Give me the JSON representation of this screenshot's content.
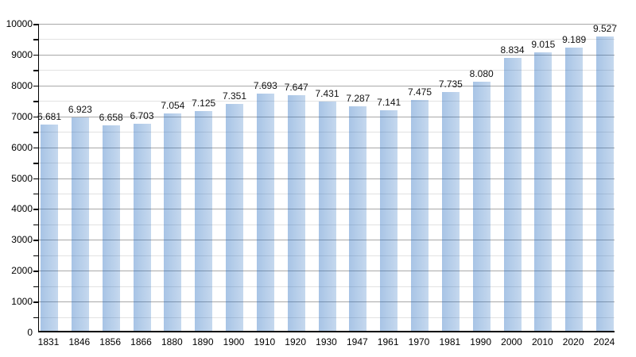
{
  "chart_data": {
    "type": "bar",
    "title": "",
    "categories": [
      "1831",
      "1846",
      "1856",
      "1866",
      "1880",
      "1890",
      "1900",
      "1910",
      "1920",
      "1930",
      "1947",
      "1961",
      "1970",
      "1981",
      "1990",
      "2000",
      "2010",
      "2020",
      "2024"
    ],
    "values": [
      6681,
      6923,
      6658,
      6703,
      7054,
      7125,
      7351,
      7693,
      7647,
      7431,
      7287,
      7141,
      7475,
      7735,
      8080,
      8834,
      9015,
      9189,
      9527
    ],
    "value_labels": [
      "6.681",
      "6.923",
      "6.658",
      "6.703",
      "7.054",
      "7.125",
      "7.351",
      "7.693",
      "7.647",
      "7.431",
      "7.287",
      "7.141",
      "7.475",
      "7.735",
      "8.080",
      "8.834",
      "9.015",
      "9.189",
      "9.527"
    ],
    "xlabel": "",
    "ylabel": "",
    "ylim": [
      0,
      10000
    ],
    "y_tick_labels": [
      "0",
      "1000",
      "2000",
      "3000",
      "4000",
      "5000",
      "6000",
      "7000",
      "8000",
      "9000",
      "10000"
    ],
    "y_major_tick_step": 1000,
    "y_minor_tick_step": 500,
    "grid": "horizontal major and minor lines",
    "legend": "none"
  },
  "colors": {
    "background": "#ffffff",
    "bar_fill": "#b4cde7",
    "major_gridline": "#a8a8a8",
    "minor_gridline": "#e2e2e2",
    "axis": "#000000",
    "label_text": "#000000"
  }
}
